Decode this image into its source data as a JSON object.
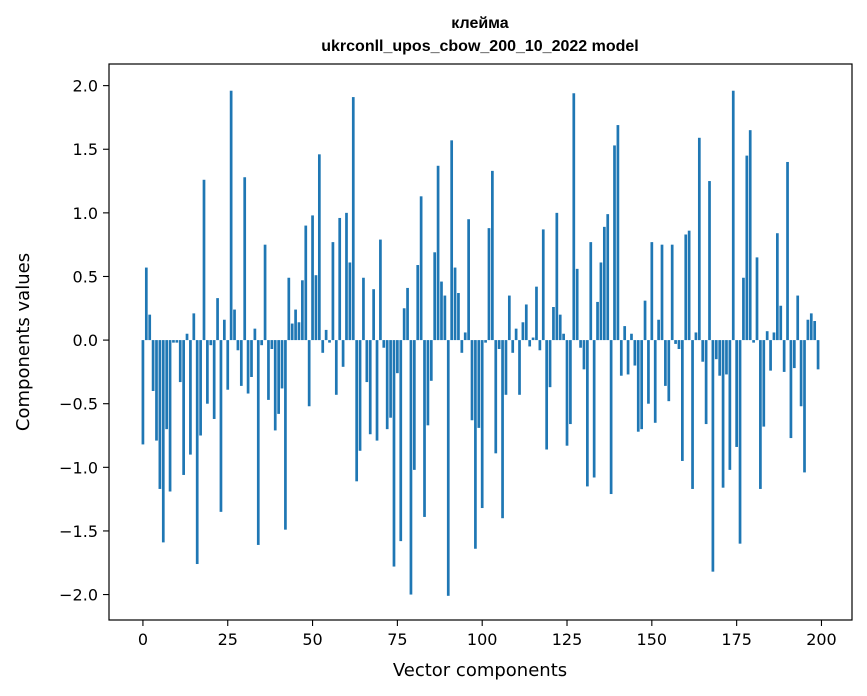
{
  "chart_data": {
    "type": "bar",
    "title": "клейма",
    "subtitle": "ukrconll_upos_cbow_200_10_2022 model",
    "xlabel": "Vector components",
    "ylabel": "Components values",
    "xlim": [
      -10,
      209
    ],
    "ylim": [
      -2.2,
      2.17
    ],
    "xticks": [
      0,
      25,
      50,
      75,
      100,
      125,
      150,
      175,
      200
    ],
    "xtick_labels": [
      "0",
      "25",
      "50",
      "75",
      "100",
      "125",
      "150",
      "175",
      "200"
    ],
    "yticks": [
      2.0,
      1.5,
      1.0,
      0.5,
      0.0,
      -0.5,
      -1.0,
      -1.5,
      -2.0
    ],
    "ytick_labels": [
      "2.0",
      "1.5",
      "1.0",
      "0.5",
      "0.0",
      "−0.5",
      "−1.0",
      "−1.5",
      "−2.0"
    ],
    "grid": false,
    "bar_color": "#1f77b4",
    "values": [
      -0.82,
      0.57,
      0.2,
      -0.4,
      -0.79,
      -1.17,
      -1.59,
      -0.7,
      -1.19,
      -0.02,
      -0.02,
      -0.33,
      -1.06,
      0.05,
      -0.9,
      0.21,
      -1.76,
      -0.75,
      1.26,
      -0.5,
      -0.04,
      -0.62,
      0.33,
      -1.35,
      0.16,
      -0.39,
      1.96,
      0.24,
      -0.08,
      -0.36,
      1.28,
      -0.42,
      -0.29,
      0.09,
      -1.61,
      -0.04,
      0.75,
      -0.47,
      -0.07,
      -0.71,
      -0.58,
      -0.38,
      -1.49,
      0.49,
      0.13,
      0.24,
      0.14,
      0.47,
      0.9,
      -0.52,
      0.98,
      0.51,
      1.46,
      -0.1,
      0.08,
      -0.02,
      0.77,
      -0.43,
      0.96,
      -0.21,
      1.0,
      0.61,
      1.91,
      -1.11,
      -0.87,
      0.49,
      -0.33,
      -0.74,
      0.4,
      -0.79,
      0.79,
      -0.06,
      -0.7,
      -0.61,
      -1.78,
      -0.26,
      -1.58,
      0.25,
      0.41,
      -2.0,
      -1.02,
      0.59,
      1.13,
      -1.39,
      -0.67,
      -0.32,
      0.69,
      1.37,
      0.46,
      0.35,
      -2.01,
      1.57,
      0.57,
      0.37,
      -0.1,
      0.06,
      0.95,
      -0.63,
      -1.64,
      -0.69,
      -1.32,
      -0.02,
      0.88,
      1.33,
      -0.89,
      -0.07,
      -1.4,
      -0.43,
      0.35,
      -0.1,
      0.09,
      -0.43,
      0.14,
      0.28,
      -0.05,
      0.02,
      0.42,
      -0.08,
      0.87,
      -0.86,
      -0.37,
      0.26,
      1.0,
      0.2,
      0.05,
      -0.83,
      -0.66,
      1.94,
      0.56,
      -0.06,
      -0.23,
      -1.15,
      0.77,
      -1.08,
      0.3,
      0.61,
      0.89,
      0.99,
      -1.21,
      1.53,
      1.69,
      -0.28,
      0.11,
      -0.27,
      0.05,
      -0.2,
      -0.72,
      -0.7,
      0.31,
      -0.5,
      0.77,
      -0.65,
      0.16,
      0.75,
      -0.36,
      -0.48,
      0.75,
      -0.03,
      -0.07,
      -0.95,
      0.83,
      0.86,
      -1.17,
      0.06,
      1.59,
      -0.17,
      -0.66,
      1.25,
      -1.82,
      -0.15,
      -0.28,
      -1.16,
      -0.27,
      -1.02,
      1.96,
      -0.84,
      -1.6,
      0.49,
      1.45,
      1.65,
      -0.02,
      0.65,
      -1.17,
      -0.68,
      0.07,
      -0.24,
      0.06,
      0.84,
      0.27,
      -0.25,
      1.4,
      -0.77,
      -0.22,
      0.35,
      -0.52,
      -1.04,
      0.16,
      0.21,
      0.15,
      -0.23
    ]
  }
}
